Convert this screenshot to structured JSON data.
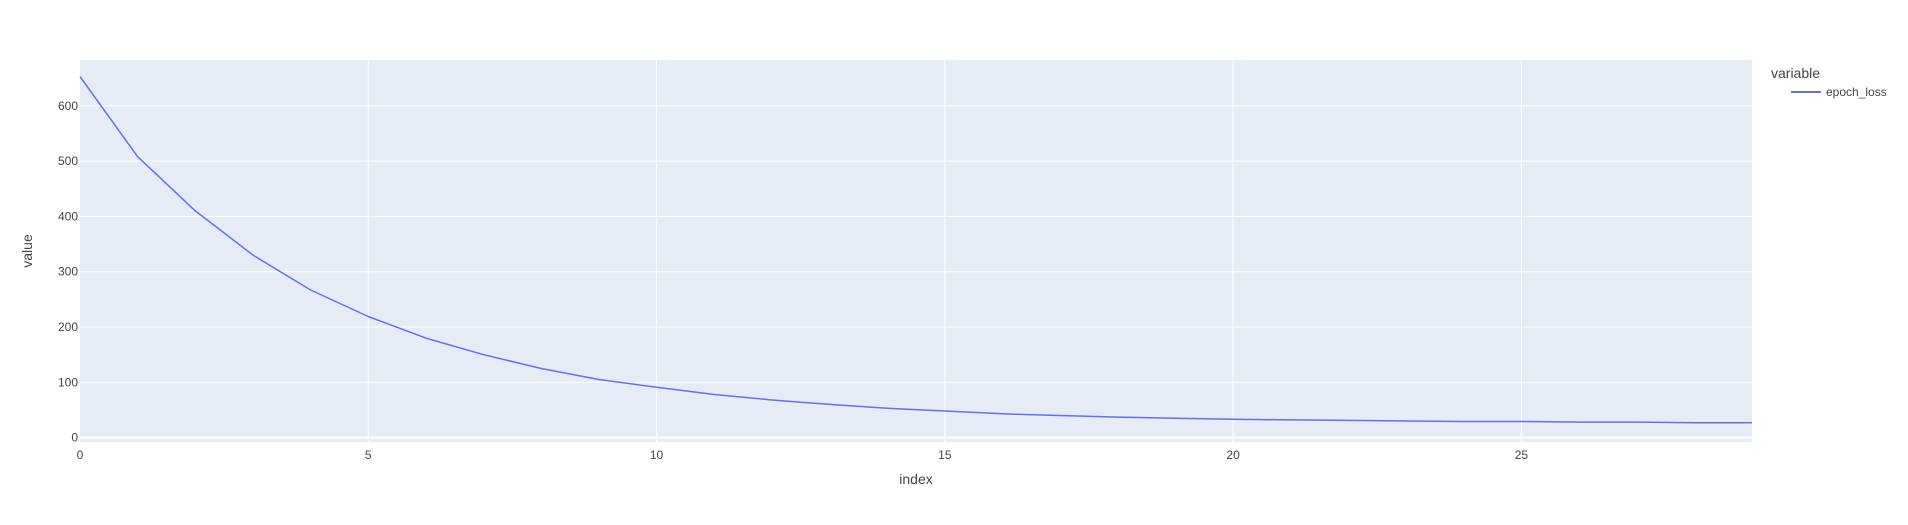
{
  "chart_data": {
    "type": "line",
    "xlabel": "index",
    "ylabel": "value",
    "xlim": [
      0,
      29
    ],
    "ylim": [
      -8,
      683
    ],
    "xticks": [
      0,
      5,
      10,
      15,
      20,
      25
    ],
    "yticks": [
      0,
      100,
      200,
      300,
      400,
      500,
      600
    ],
    "grid": true,
    "legend": {
      "title": "variable",
      "placement": "top-right"
    },
    "x": [
      0,
      1,
      2,
      3,
      4,
      5,
      6,
      7,
      8,
      9,
      10,
      11,
      12,
      13,
      14,
      15,
      16,
      17,
      18,
      19,
      20,
      21,
      22,
      23,
      24,
      25,
      26,
      27,
      28,
      29
    ],
    "series": [
      {
        "name": "epoch_loss",
        "color": "#636efa",
        "values": [
          653,
          508,
          410,
          330,
          267,
          219,
          180,
          150,
          125,
          105,
          91,
          78,
          68,
          60,
          53,
          48,
          43,
          40,
          37,
          35,
          33,
          32,
          31,
          30,
          29,
          29,
          28,
          28,
          27,
          27
        ]
      }
    ]
  },
  "colors": {
    "plot_background": "#e5ecf6",
    "grid": "#ffffff",
    "text": "#444444"
  }
}
